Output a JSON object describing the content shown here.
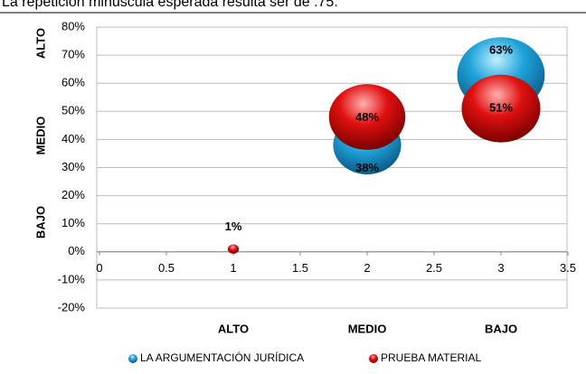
{
  "caption": "La repetición minúscula esperada resulta ser de .75.",
  "chart_data": {
    "type": "bubble",
    "ylim": [
      -20,
      80
    ],
    "yticks": [
      {
        "value": -20,
        "label": "-20%"
      },
      {
        "value": -10,
        "label": "-10%"
      },
      {
        "value": 0,
        "label": "0%"
      },
      {
        "value": 10,
        "label": "10%"
      },
      {
        "value": 20,
        "label": "20%"
      },
      {
        "value": 30,
        "label": "30%"
      },
      {
        "value": 40,
        "label": "40%"
      },
      {
        "value": 50,
        "label": "50%"
      },
      {
        "value": 60,
        "label": "60%"
      },
      {
        "value": 70,
        "label": "70%"
      },
      {
        "value": 80,
        "label": "80%"
      }
    ],
    "xlim": [
      0,
      3.5
    ],
    "xticks": [
      0,
      0.5,
      1,
      1.5,
      2,
      2.5,
      3,
      3.5
    ],
    "grid": true,
    "x_category_labels": [
      "ALTO",
      "MEDIO",
      "BAJO"
    ],
    "y_category_labels": [
      "ALTO",
      "MEDIO",
      "BAJO"
    ],
    "legend": "bottom",
    "series": [
      {
        "name": "LA ARGUMENTACIÓN JURÍDICA",
        "color": "#1fa3d9",
        "x": [
          2,
          3
        ],
        "values": [
          38,
          63
        ],
        "sizes": [
          38,
          63
        ],
        "value_labels": [
          "38%",
          "63%"
        ]
      },
      {
        "name": "PRUEBA MATERIAL",
        "color": "#e01010",
        "x": [
          1,
          2,
          3
        ],
        "values": [
          1,
          48,
          51
        ],
        "sizes": [
          1,
          48,
          51
        ],
        "value_labels": [
          "1%",
          "48%",
          "51%"
        ]
      }
    ]
  }
}
